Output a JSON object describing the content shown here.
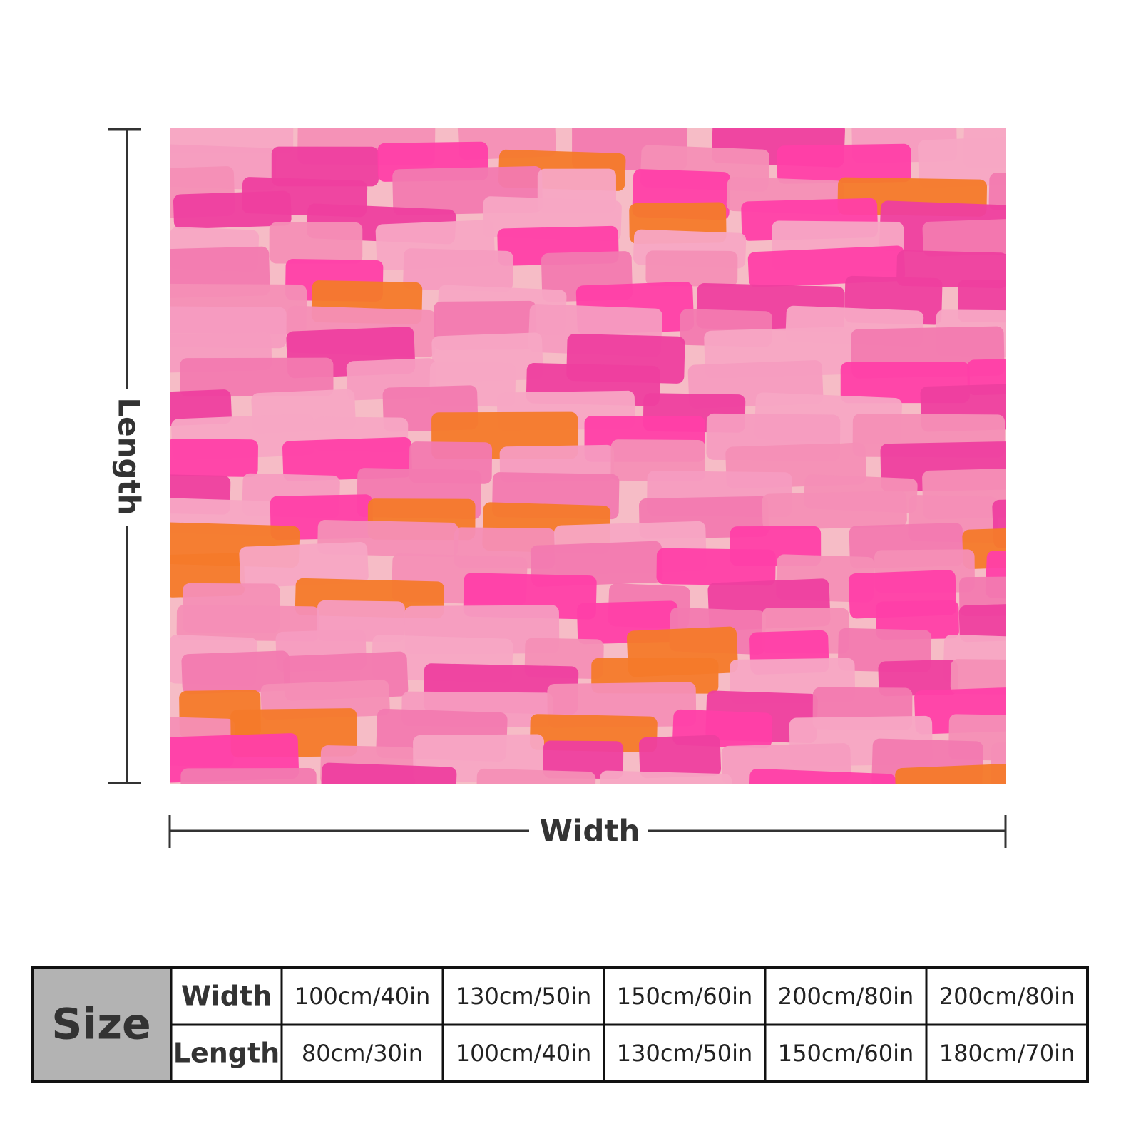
{
  "dimensions": {
    "length_label": "Length",
    "width_label": "Width"
  },
  "table": {
    "corner": "Size",
    "rows": [
      [
        "Width",
        "100cm/40in",
        "130cm/50in",
        "150cm/60in",
        "200cm/80in",
        "200cm/80in"
      ],
      [
        "Length",
        "80cm/30in",
        "100cm/40in",
        "130cm/50in",
        "150cm/60in",
        "180cm/70in"
      ]
    ]
  }
}
